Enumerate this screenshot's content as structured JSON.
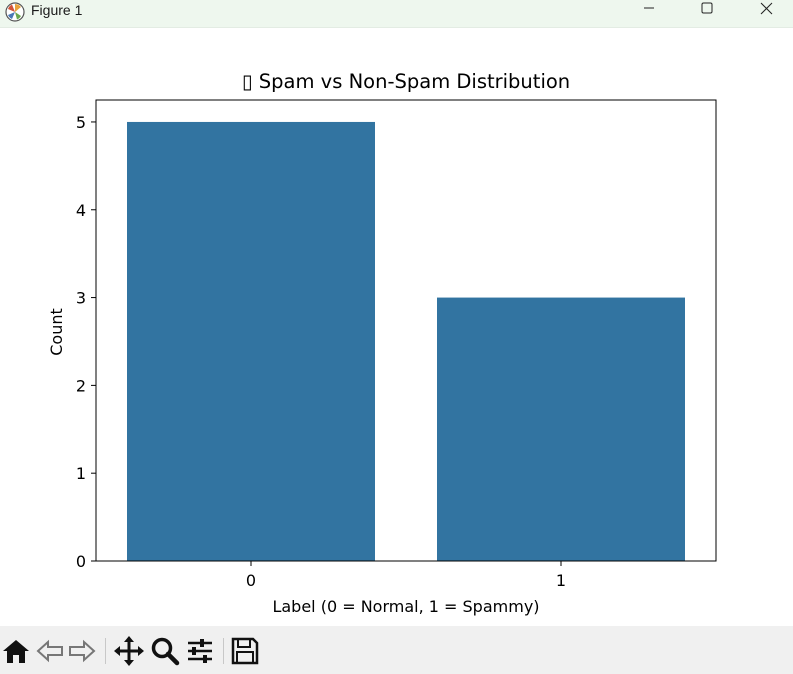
{
  "window": {
    "title": "Figure 1"
  },
  "colors": {
    "bar": "#3274a1",
    "titlebar": "#eef7ee",
    "toolbar": "#f0f0f0"
  },
  "chart_data": {
    "type": "bar",
    "title": "▯ Spam vs Non-Spam Distribution",
    "xlabel": "Label (0 = Normal, 1 = Spammy)",
    "ylabel": "Count",
    "categories": [
      "0",
      "1"
    ],
    "values": [
      5,
      3
    ],
    "ylim": [
      0,
      5.25
    ],
    "yticks": [
      0,
      1,
      2,
      3,
      4,
      5
    ],
    "grid": false
  },
  "toolbar": {
    "items": [
      {
        "name": "home-icon"
      },
      {
        "name": "back-icon"
      },
      {
        "name": "forward-icon"
      },
      {
        "name": "pan-icon"
      },
      {
        "name": "zoom-icon"
      },
      {
        "name": "configure-subplots-icon"
      },
      {
        "name": "save-icon"
      }
    ]
  }
}
